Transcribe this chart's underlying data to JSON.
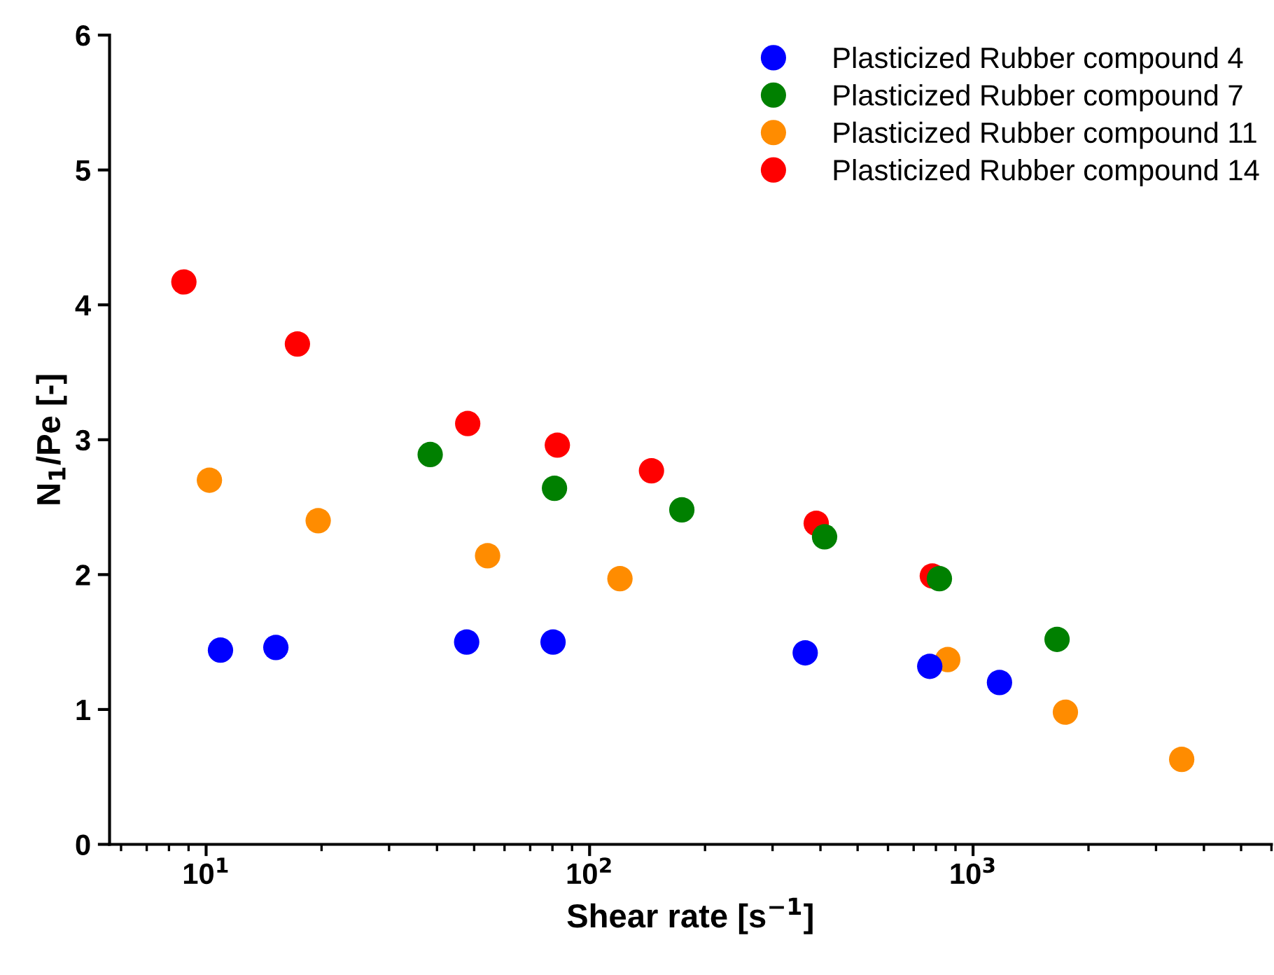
{
  "chart_data": {
    "type": "scatter",
    "xlabel": "Shear rate [s$^{−1}$]",
    "ylabel": "N$_{1}$/Pe [-]",
    "log": "x",
    "xlim": [
      5.6,
      6000
    ],
    "ylim": [
      0,
      6
    ],
    "xticks": [
      {
        "value": 10,
        "label": "10$^{1}$"
      },
      {
        "value": 100,
        "label": "10$^{2}$"
      },
      {
        "value": 1000,
        "label": "10$^{3}$"
      }
    ],
    "yticks": [
      0,
      1,
      2,
      3,
      4,
      5,
      6
    ],
    "grid": false,
    "legend": "top right",
    "marker": "circle",
    "series": [
      {
        "name": "Plasticized Rubber compound 4",
        "color": "#0000ff",
        "x": [
          10.9,
          15.2,
          47.8,
          80.3,
          365,
          771,
          1172
        ],
        "values": [
          1.44,
          1.46,
          1.5,
          1.5,
          1.42,
          1.32,
          1.2
        ]
      },
      {
        "name": "Plasticized Rubber compound 7",
        "color": "#008000",
        "x": [
          38.4,
          81,
          174,
          410,
          817,
          1656
        ],
        "values": [
          2.89,
          2.64,
          2.48,
          2.28,
          1.97,
          1.52
        ]
      },
      {
        "name": "Plasticized Rubber compound 11",
        "color": "#ff8c00",
        "x": [
          10.2,
          19.6,
          54.2,
          120,
          859,
          1741,
          3500
        ],
        "values": [
          2.7,
          2.4,
          2.14,
          1.97,
          1.37,
          0.98,
          0.63
        ]
      },
      {
        "name": "Plasticized Rubber compound 14",
        "color": "#ff0000",
        "x": [
          8.75,
          17.3,
          48.1,
          82.4,
          145,
          390,
          783
        ],
        "values": [
          4.17,
          3.71,
          3.12,
          2.96,
          2.77,
          2.38,
          1.99
        ]
      }
    ]
  }
}
